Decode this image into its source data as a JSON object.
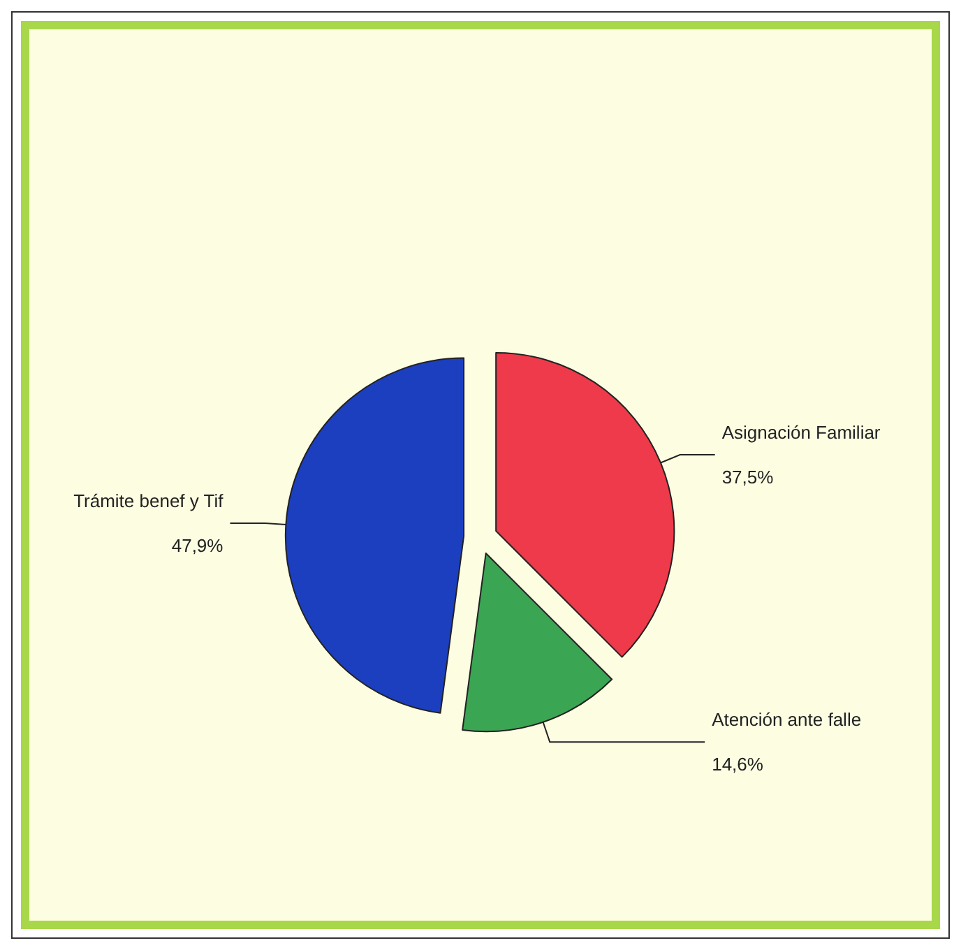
{
  "chart_data": {
    "type": "pie",
    "categories": [
      "Asignación Familiar",
      "Atención ante falle",
      "Trámite benef y Tif"
    ],
    "values": [
      37.5,
      14.6,
      47.9
    ],
    "value_labels": [
      "37,5%",
      "14,6%",
      "47,9%"
    ],
    "colors": [
      "#ee3a4a",
      "#3aa552",
      "#1c3fc0"
    ],
    "legend": false
  }
}
